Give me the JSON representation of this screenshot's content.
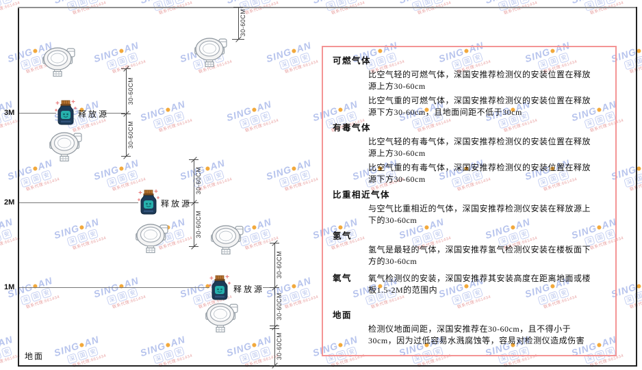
{
  "watermark": {
    "brand_left": "SING",
    "brand_right": "AN",
    "cjk_chars": [
      "深",
      "国",
      "安"
    ],
    "red_line": "联系代理:661434",
    "brand_color": "#b7c4ed",
    "dot_color": "#f2a93c"
  },
  "diagram": {
    "axis_marks": [
      {
        "label": "3M"
      },
      {
        "label": "2M"
      },
      {
        "label": "1M"
      }
    ],
    "ground_label": "地面",
    "source_label": "释放源",
    "dim_label": "30-60CM"
  },
  "panel": {
    "border_color": "#f49494",
    "sections": [
      {
        "heading": "可燃气体",
        "paragraphs": [
          "比空气轻的可燃气体，深国安推荐检测仪的安装位置在释放源上方30-60cm",
          "比空气重的可燃气体，深国安推荐检测仪的安装位置在释放源下方30-60cm，且地面间距不低于30cm"
        ]
      },
      {
        "heading": "有毒气体",
        "paragraphs": [
          "比空气轻的有毒气体，深国安推荐检测仪的安装位置在释放源上方30-60cm",
          "比空气重的有毒气体，深国安推荐检测仪的安装位置在释放源下方30-60cm"
        ]
      },
      {
        "heading": "比重相近气体",
        "paragraphs": [
          "与空气比重相近的气体，深国安推荐检测仪安装在释放源上下的30-60cm"
        ]
      },
      {
        "heading": "氢气",
        "paragraphs": [
          "氢气是最轻的气体，深国安推荐氢气检测仪安装在楼板面下方的30-60cm"
        ]
      },
      {
        "heading": "氧气",
        "paragraphs": [
          "氧气检测仪的安装，深国安推荐其安装高度在距离地面或楼板1.5-2M的范围内"
        ]
      },
      {
        "heading": "地面",
        "paragraphs": [
          "检测仪地面间距，深国安推荐在30-60cm，且不得小于30cm，因为过低容易水溅腐蚀等，容易对检测仪造成伤害"
        ]
      }
    ]
  }
}
